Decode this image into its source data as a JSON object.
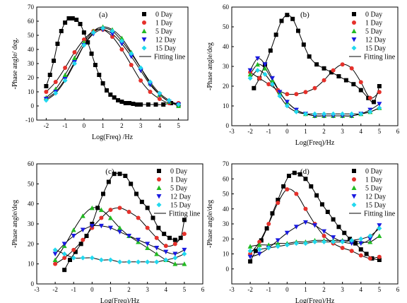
{
  "chart_data": [
    {
      "type": "scatter",
      "panel_label": "(a)",
      "xlabel": "Log(Freq) /Hz",
      "ylabel": "-Phase angle/ deg.",
      "xlim": [
        -2.5,
        5.5
      ],
      "ylim": [
        -10,
        70
      ],
      "xticks": [
        -2,
        -1,
        0,
        1,
        2,
        3,
        4,
        5
      ],
      "yticks": [
        -10,
        0,
        10,
        20,
        30,
        40,
        50,
        60,
        70
      ],
      "legend_position": "top-right",
      "fit_legend": "Fitting line",
      "series": [
        {
          "name": "0 Day",
          "color": "#000000",
          "marker": "square",
          "x": [
            -2.0,
            -1.8,
            -1.6,
            -1.4,
            -1.2,
            -1.0,
            -0.8,
            -0.6,
            -0.4,
            -0.2,
            0.0,
            0.2,
            0.4,
            0.6,
            0.8,
            1.0,
            1.2,
            1.4,
            1.6,
            1.8,
            2.0,
            2.2,
            2.4,
            2.6,
            2.8,
            3.0,
            3.4,
            3.8,
            4.2,
            4.6,
            5.0
          ],
          "y": [
            14,
            22,
            32,
            44,
            53,
            59,
            62,
            62,
            61,
            58,
            52,
            45,
            37,
            29,
            22,
            16,
            11,
            8,
            6,
            4,
            3,
            2,
            2,
            1.5,
            1,
            1,
            1,
            1,
            1,
            2,
            1
          ]
        },
        {
          "name": "1 Day",
          "color": "#e5312b",
          "marker": "circle",
          "x": [
            -2.0,
            -1.5,
            -1.0,
            -0.5,
            0.0,
            0.5,
            1.0,
            1.5,
            2.0,
            2.5,
            3.0,
            3.5,
            4.0,
            4.5,
            5.0
          ],
          "y": [
            10,
            17,
            27,
            38,
            47,
            53,
            54,
            49,
            40,
            29,
            18,
            10,
            5,
            2,
            2
          ]
        },
        {
          "name": "5 Day",
          "color": "#22bb22",
          "marker": "triangle-up",
          "x": [
            -2.0,
            -1.5,
            -1.0,
            -0.5,
            0.0,
            0.5,
            1.0,
            1.5,
            2.0,
            2.5,
            3.0,
            3.5,
            4.0,
            4.5,
            5.0
          ],
          "y": [
            6,
            12,
            22,
            34,
            45,
            53,
            56,
            54,
            48,
            38,
            27,
            16,
            8,
            3,
            0
          ]
        },
        {
          "name": "12 Day",
          "color": "#1a1ae0",
          "marker": "triangle-down",
          "x": [
            -2.0,
            -1.5,
            -1.0,
            -0.5,
            0.0,
            0.5,
            1.0,
            1.5,
            2.0,
            2.5,
            3.0,
            3.5,
            4.0,
            4.5,
            5.0
          ],
          "y": [
            5,
            10,
            19,
            31,
            43,
            51,
            54,
            51,
            44,
            35,
            25,
            15,
            8,
            3,
            1
          ]
        },
        {
          "name": "15 Day",
          "color": "#22d8ee",
          "marker": "diamond",
          "x": [
            -2.0,
            -1.5,
            -1.0,
            -0.5,
            0.0,
            0.5,
            1.0,
            1.5,
            2.0,
            2.5,
            3.0,
            3.5,
            4.0,
            4.5,
            5.0
          ],
          "y": [
            4,
            9,
            18,
            30,
            43,
            52,
            55,
            53,
            46,
            37,
            27,
            17,
            9,
            4,
            1
          ]
        }
      ]
    },
    {
      "type": "scatter",
      "panel_label": "(b)",
      "xlabel": "Log(Freq)/Hz",
      "ylabel": "-Phase angle/deg",
      "xlim": [
        -3,
        6
      ],
      "ylim": [
        0,
        60
      ],
      "xticks": [
        -3,
        -2,
        -1,
        0,
        1,
        2,
        3,
        4,
        5,
        6
      ],
      "yticks": [
        0,
        10,
        20,
        30,
        40,
        50,
        60
      ],
      "legend_position": "top-right",
      "fit_legend": "Fitting line",
      "series": [
        {
          "name": "0 Day",
          "color": "#000000",
          "marker": "square",
          "x": [
            -1.8,
            -1.5,
            -1.2,
            -0.9,
            -0.6,
            -0.3,
            0.0,
            0.3,
            0.6,
            0.9,
            1.2,
            1.6,
            2.0,
            2.4,
            2.8,
            3.2,
            3.6,
            4.0,
            4.4,
            4.7,
            5.0
          ],
          "y": [
            19,
            24,
            31,
            38,
            46,
            53,
            56,
            54,
            48,
            41,
            35,
            31,
            29,
            27,
            25,
            23,
            21,
            18,
            14,
            12,
            20
          ]
        },
        {
          "name": "1 Day",
          "color": "#e5312b",
          "marker": "circle",
          "x": [
            -2.0,
            -1.5,
            -1.0,
            -0.5,
            0.0,
            0.5,
            1.0,
            1.5,
            2.0,
            2.5,
            3.0,
            3.5,
            4.0,
            4.5,
            5.0
          ],
          "y": [
            27,
            24,
            21,
            18,
            16,
            16,
            17,
            19,
            23,
            28,
            31,
            29,
            22,
            14,
            17
          ]
        },
        {
          "name": "5 Day",
          "color": "#22bb22",
          "marker": "triangle-up",
          "x": [
            -2.0,
            -1.6,
            -1.2,
            -0.8,
            -0.4,
            0.0,
            0.5,
            1.0,
            1.5,
            2.0,
            2.5,
            3.0,
            3.5,
            4.0,
            4.5,
            5.0
          ],
          "y": [
            26,
            31,
            29,
            23,
            17,
            12,
            8,
            6,
            5,
            5,
            5,
            5,
            5,
            6,
            7,
            9
          ]
        },
        {
          "name": "12 Day",
          "color": "#1a1ae0",
          "marker": "triangle-down",
          "x": [
            -2.0,
            -1.6,
            -1.2,
            -0.8,
            -0.4,
            0.0,
            0.5,
            1.0,
            1.5,
            2.0,
            2.5,
            3.0,
            3.5,
            4.0,
            4.5,
            5.0
          ],
          "y": [
            28,
            34,
            31,
            24,
            17,
            12,
            8,
            6,
            5,
            5,
            5,
            5,
            5,
            6,
            8,
            11
          ]
        },
        {
          "name": "15 Day",
          "color": "#22d8ee",
          "marker": "diamond",
          "x": [
            -2.0,
            -1.6,
            -1.2,
            -0.8,
            -0.4,
            0.0,
            0.5,
            1.0,
            1.5,
            2.0,
            2.5,
            3.0,
            3.5,
            4.0,
            4.5,
            5.0
          ],
          "y": [
            24,
            28,
            26,
            21,
            15,
            10,
            7,
            6,
            6,
            6,
            6,
            6,
            6,
            6,
            7,
            9
          ]
        }
      ]
    },
    {
      "type": "scatter",
      "panel_label": "(c)",
      "xlabel": "Log(Freq)/Hz",
      "ylabel": "-Phase angle/deg",
      "xlim": [
        -3,
        6
      ],
      "ylim": [
        0,
        60
      ],
      "xticks": [
        -3,
        -2,
        -1,
        0,
        1,
        2,
        3,
        4,
        5,
        6
      ],
      "yticks": [
        0,
        10,
        20,
        30,
        40,
        50,
        60
      ],
      "legend_position": "top-right",
      "fit_legend": "Fitting line",
      "series": [
        {
          "name": "0 Day",
          "color": "#000000",
          "marker": "square",
          "x": [
            -1.5,
            -1.2,
            -0.9,
            -0.6,
            -0.3,
            0.0,
            0.3,
            0.6,
            0.9,
            1.2,
            1.5,
            1.8,
            2.1,
            2.4,
            2.7,
            3.0,
            3.3,
            3.6,
            3.9,
            4.2,
            4.5,
            4.8,
            5.0
          ],
          "y": [
            7,
            12,
            16,
            20,
            24,
            30,
            38,
            45,
            51,
            55,
            55,
            54,
            50,
            45,
            41,
            38,
            33,
            28,
            25,
            23,
            22,
            23,
            32
          ]
        },
        {
          "name": "1 Day",
          "color": "#e5312b",
          "marker": "circle",
          "x": [
            -2.0,
            -1.5,
            -1.0,
            -0.5,
            0.0,
            0.5,
            1.0,
            1.5,
            2.0,
            2.5,
            3.0,
            3.5,
            4.0,
            4.5,
            5.0
          ],
          "y": [
            10,
            13,
            17,
            22,
            28,
            33,
            37,
            38,
            36,
            33,
            28,
            23,
            19,
            20,
            25
          ]
        },
        {
          "name": "5 Day",
          "color": "#22bb22",
          "marker": "triangle-up",
          "x": [
            -2.0,
            -1.5,
            -1.0,
            -0.5,
            0.0,
            0.5,
            1.0,
            1.5,
            2.0,
            2.5,
            3.0,
            3.5,
            4.0,
            4.5,
            5.0
          ],
          "y": [
            12,
            19,
            27,
            34,
            38,
            37,
            33,
            28,
            24,
            21,
            18,
            15,
            12,
            10,
            10
          ]
        },
        {
          "name": "12 Day",
          "color": "#1a1ae0",
          "marker": "triangle-down",
          "x": [
            -2.0,
            -1.5,
            -1.0,
            -0.5,
            0.0,
            0.5,
            1.0,
            1.5,
            2.0,
            2.5,
            3.0,
            3.5,
            4.0,
            4.5,
            5.0
          ],
          "y": [
            15,
            20,
            24,
            27,
            29,
            29,
            28,
            26,
            24,
            22,
            20,
            18,
            16,
            15,
            17
          ]
        },
        {
          "name": "15 Day",
          "color": "#22d8ee",
          "marker": "diamond",
          "x": [
            -2.0,
            -1.5,
            -1.0,
            -0.5,
            0.0,
            0.5,
            1.0,
            1.5,
            2.0,
            2.5,
            3.0,
            3.5,
            4.0,
            4.5,
            5.0
          ],
          "y": [
            17,
            15,
            13,
            13,
            13,
            12,
            12,
            11,
            11,
            11,
            11,
            11,
            12,
            13,
            15
          ]
        }
      ]
    },
    {
      "type": "scatter",
      "panel_label": "(d)",
      "xlabel": "Log(Freq)/Hz",
      "ylabel": "-Phase angle/deg",
      "xlim": [
        -3,
        6
      ],
      "ylim": [
        -10,
        70
      ],
      "xticks": [
        -3,
        -2,
        -1,
        0,
        1,
        2,
        3,
        4,
        5,
        6
      ],
      "yticks": [
        0,
        10,
        20,
        30,
        40,
        50,
        60,
        70
      ],
      "legend_position": "top-right",
      "fit_legend": "Fitting line",
      "series": [
        {
          "name": "0 Day",
          "color": "#000000",
          "marker": "square",
          "x": [
            -2.0,
            -1.7,
            -1.4,
            -1.1,
            -0.8,
            -0.5,
            -0.2,
            0.1,
            0.4,
            0.7,
            1.0,
            1.3,
            1.6,
            1.9,
            2.2,
            2.5,
            2.8,
            3.1,
            3.4,
            3.7,
            4.0,
            4.3,
            4.6,
            5.0
          ],
          "y": [
            5,
            12,
            19,
            27,
            37,
            46,
            55,
            62,
            64,
            63,
            60,
            55,
            49,
            43,
            38,
            33,
            28,
            24,
            20,
            17,
            13,
            10,
            7,
            6
          ]
        },
        {
          "name": "1 Day",
          "color": "#e5312b",
          "marker": "circle",
          "x": [
            -2.0,
            -1.5,
            -1.0,
            -0.5,
            0.0,
            0.5,
            1.0,
            1.5,
            2.0,
            2.5,
            3.0,
            3.5,
            4.0,
            4.5,
            5.0
          ],
          "y": [
            10,
            18,
            30,
            44,
            53,
            50,
            40,
            30,
            22,
            17,
            14,
            12,
            9,
            7,
            8
          ]
        },
        {
          "name": "5 Day",
          "color": "#22bb22",
          "marker": "triangle-up",
          "x": [
            -2.0,
            -1.5,
            -1.0,
            -0.5,
            0.0,
            0.5,
            1.0,
            1.5,
            2.0,
            2.5,
            3.0,
            3.5,
            4.0,
            4.5,
            5.0
          ],
          "y": [
            15,
            16,
            16,
            17,
            17,
            18,
            18,
            19,
            19,
            19,
            19,
            19,
            18,
            18,
            22
          ]
        },
        {
          "name": "12 Day",
          "color": "#1a1ae0",
          "marker": "triangle-down",
          "x": [
            -2.0,
            -1.5,
            -1.0,
            -0.5,
            0.0,
            0.5,
            1.0,
            1.5,
            2.0,
            2.5,
            3.0,
            3.5,
            4.0,
            4.5,
            5.0
          ],
          "y": [
            8,
            10,
            14,
            19,
            24,
            28,
            31,
            29,
            25,
            21,
            18,
            17,
            17,
            20,
            29
          ]
        },
        {
          "name": "15 Day",
          "color": "#22d8ee",
          "marker": "diamond",
          "x": [
            -2.0,
            -1.5,
            -1.0,
            -0.5,
            0.0,
            0.5,
            1.0,
            1.5,
            2.0,
            2.5,
            3.0,
            3.5,
            4.0,
            4.5,
            5.0
          ],
          "y": [
            12,
            13,
            14,
            15,
            16,
            17,
            17,
            18,
            18,
            18,
            18,
            19,
            20,
            22,
            27
          ]
        }
      ]
    }
  ]
}
